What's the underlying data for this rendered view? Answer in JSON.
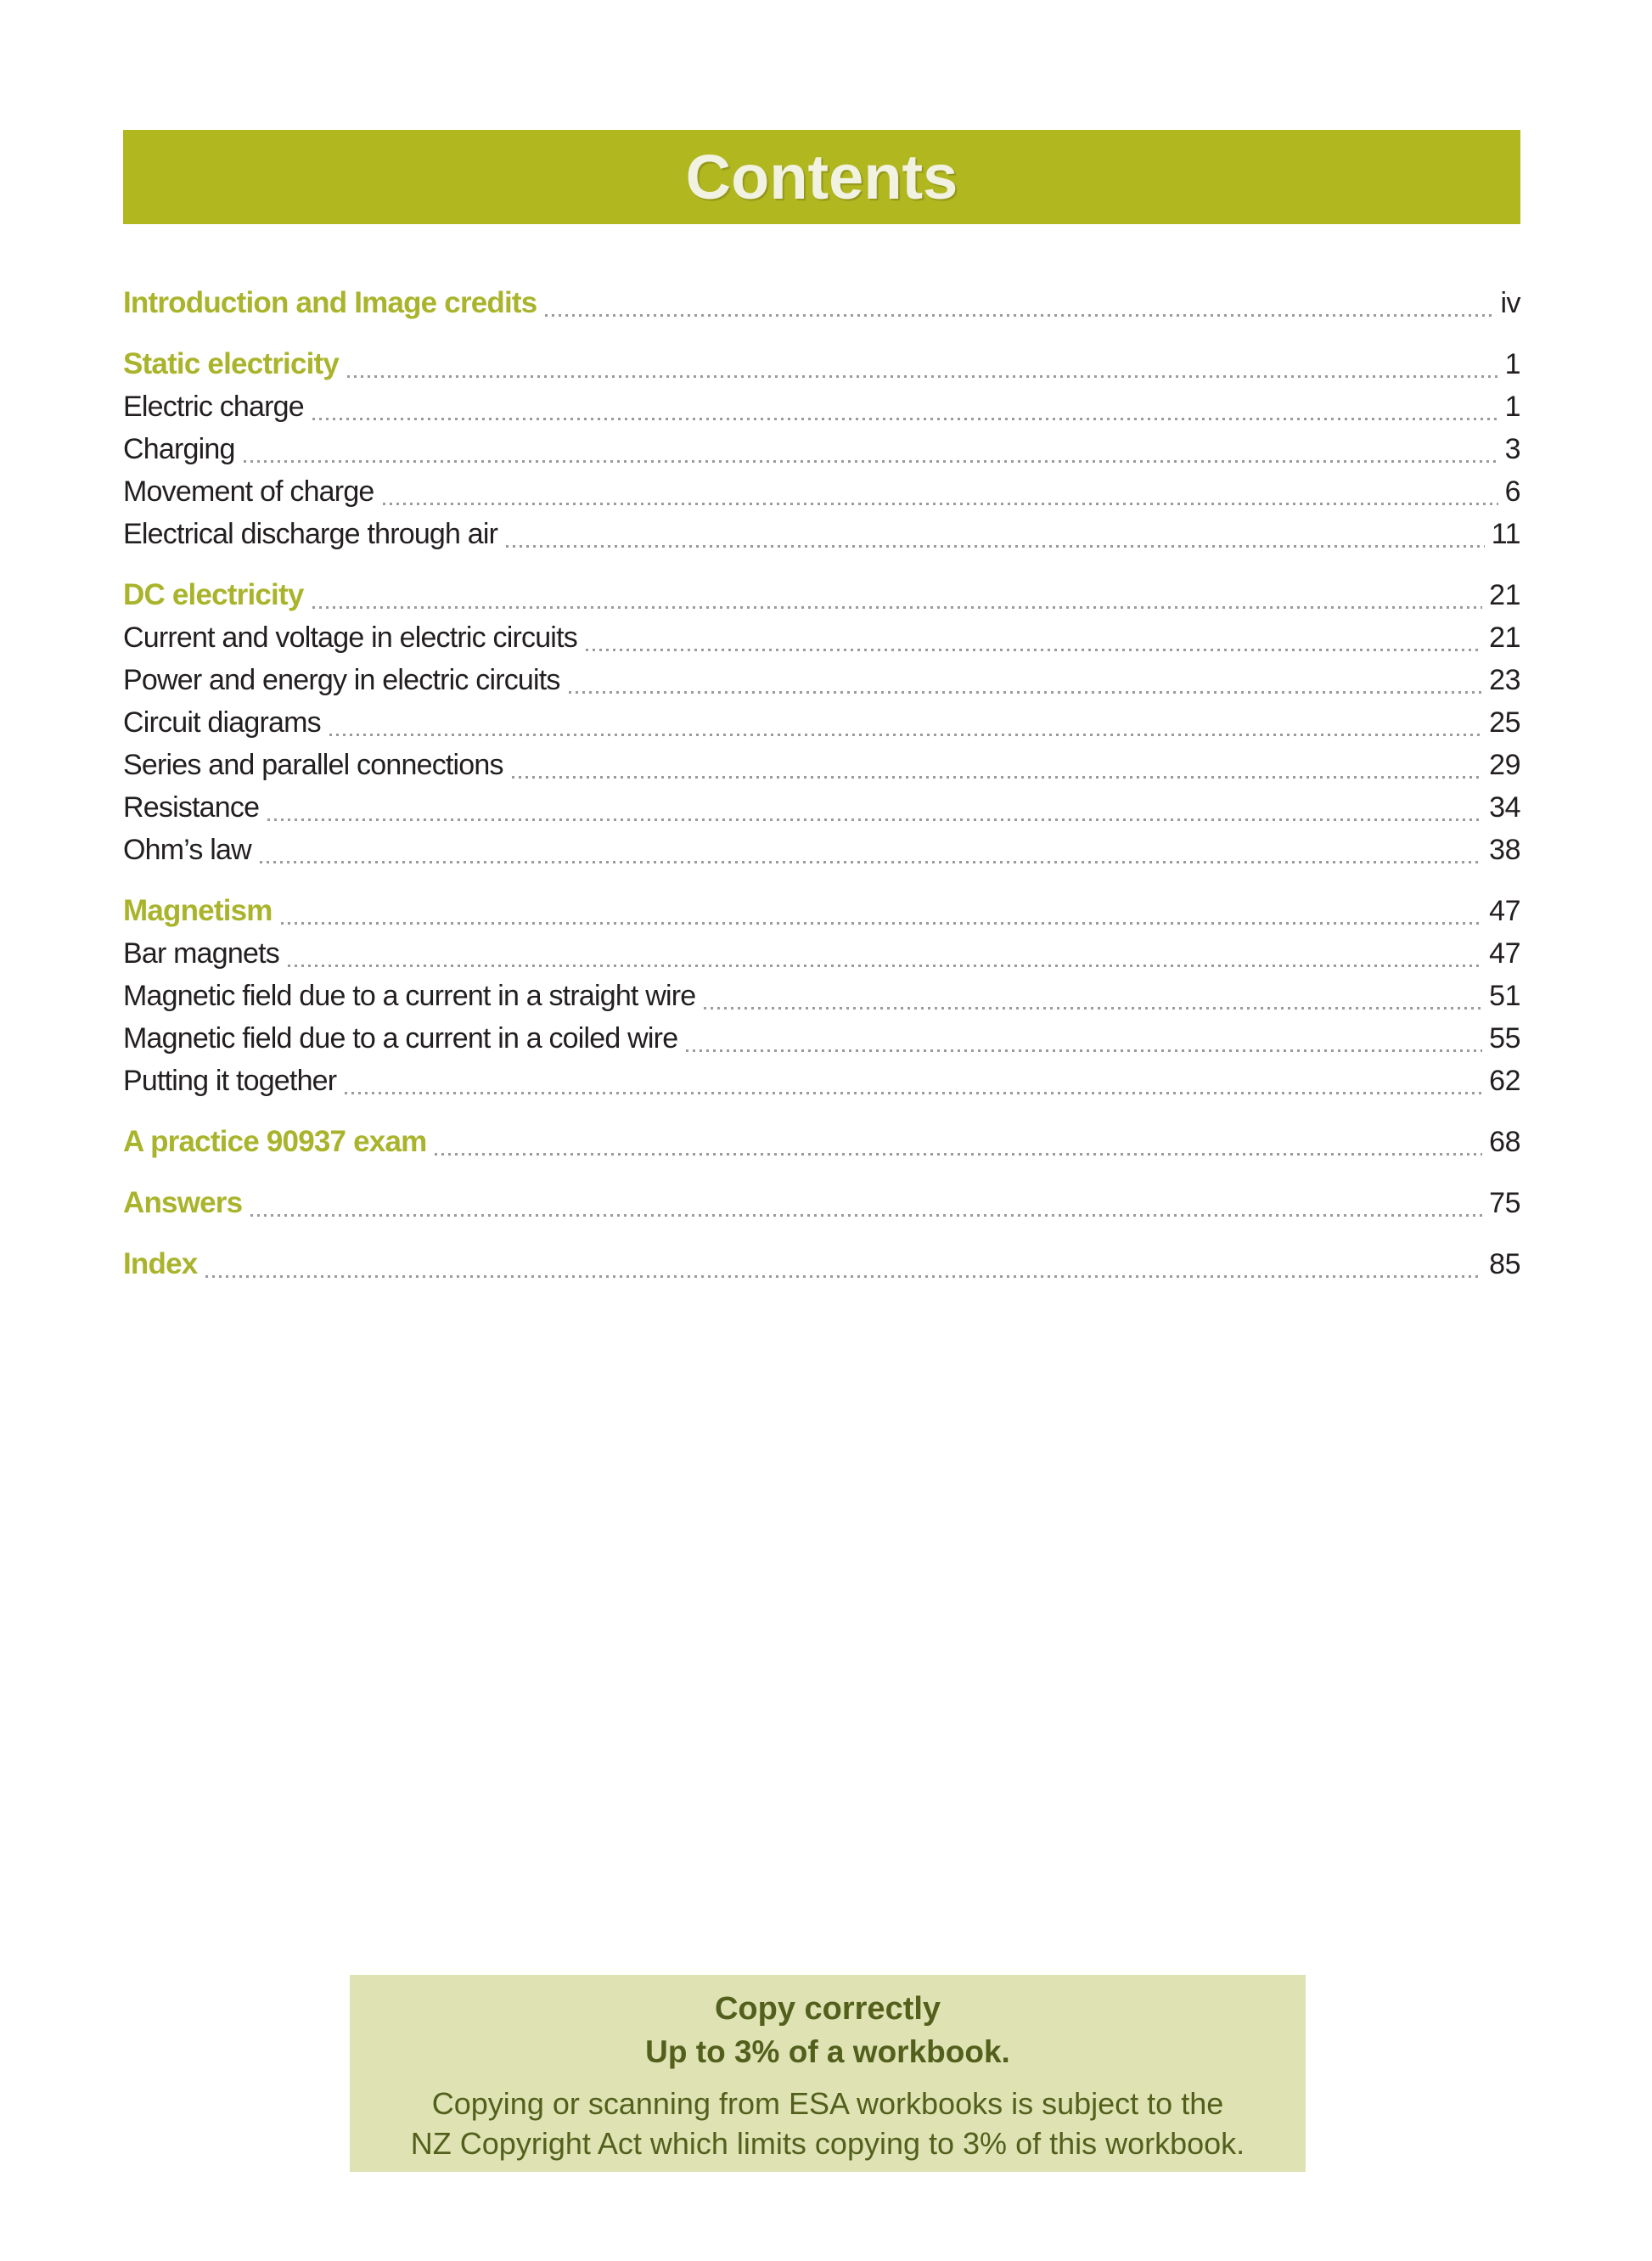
{
  "header": {
    "title": "Contents"
  },
  "colors": {
    "header_bar_green": "#b0b71f",
    "section_heading_green": "#a9b42c",
    "body_text": "#231f20",
    "leader_dots": "#9b9b9b",
    "header_title_cream": "#f2f2e2",
    "notice_background": "#dfe3b4",
    "notice_text": "#52601c"
  },
  "toc": {
    "entries": [
      {
        "type": "heading",
        "label": "Introduction and Image credits",
        "page": "iv"
      },
      {
        "type": "heading",
        "label": "Static electricity",
        "page": "1"
      },
      {
        "type": "item",
        "label": "Electric charge",
        "page": "1"
      },
      {
        "type": "item",
        "label": "Charging",
        "page": "3"
      },
      {
        "type": "item",
        "label": "Movement of charge",
        "page": "6"
      },
      {
        "type": "item",
        "label": "Electrical discharge through air",
        "page": "11"
      },
      {
        "type": "heading",
        "label": "DC electricity",
        "page": "21"
      },
      {
        "type": "item",
        "label": "Current and voltage in electric circuits",
        "page": "21"
      },
      {
        "type": "item",
        "label": "Power and energy in electric circuits",
        "page": "23"
      },
      {
        "type": "item",
        "label": "Circuit diagrams",
        "page": "25"
      },
      {
        "type": "item",
        "label": "Series and parallel connections",
        "page": "29"
      },
      {
        "type": "item",
        "label": "Resistance",
        "page": "34"
      },
      {
        "type": "item",
        "label": "Ohm’s law",
        "page": "38"
      },
      {
        "type": "heading",
        "label": "Magnetism",
        "page": "47"
      },
      {
        "type": "item",
        "label": "Bar magnets",
        "page": "47"
      },
      {
        "type": "item",
        "label": "Magnetic field due to a current in a straight wire",
        "page": "51"
      },
      {
        "type": "item",
        "label": "Magnetic field due to a current in a coiled wire",
        "page": "55"
      },
      {
        "type": "item",
        "label": "Putting it together",
        "page": "62"
      },
      {
        "type": "heading",
        "label": "A practice 90937 exam",
        "page": "68"
      },
      {
        "type": "heading",
        "label": "Answers",
        "page": "75"
      },
      {
        "type": "heading",
        "label": "Index",
        "page": "85"
      }
    ]
  },
  "notice": {
    "title": "Copy correctly",
    "subtitle": "Up to 3% of a workbook.",
    "body_line1": "Copying or scanning from ESA workbooks is subject to the",
    "body_line2": "NZ Copyright Act which limits copying to 3% of this workbook."
  }
}
